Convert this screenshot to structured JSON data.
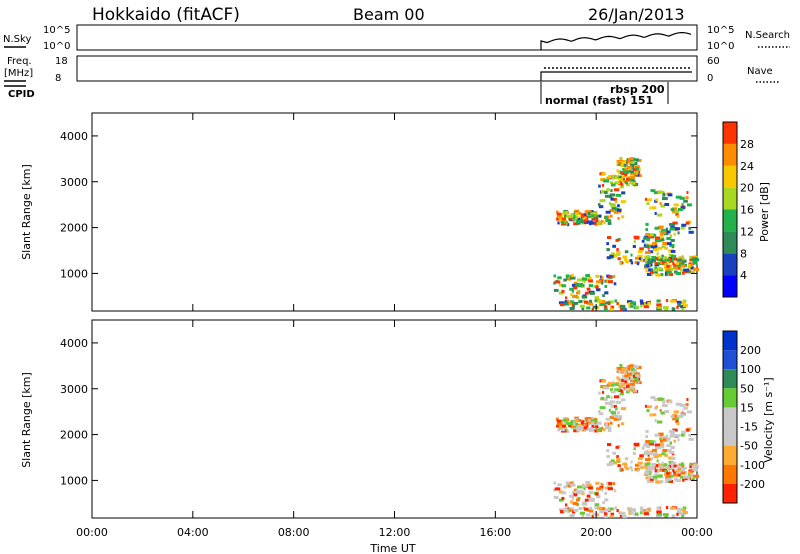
{
  "header": {
    "station": "Hokkaido (fitACF)",
    "beam": "Beam 00",
    "date": "26/Jan/2013"
  },
  "aux_panels": {
    "nsky_label": "N.Sky",
    "nsky_ticks": [
      "10^5",
      "10^0"
    ],
    "nsearch_label": "N.Search",
    "nsearch_ticks": [
      "10^5",
      "10^0"
    ],
    "freq_label_1": "Freq.",
    "freq_label_2": "[MHz]",
    "freq_ticks": [
      "18",
      "8"
    ],
    "nave_label": "Nave",
    "nave_ticks": [
      "60",
      "0"
    ],
    "cpid_label": "CPID",
    "cpid_entries": [
      "rbsp 200",
      "normal (fast) 151"
    ]
  },
  "colors": {
    "power_scale": [
      "#0000ff",
      "#1a3fbf",
      "#2e8b57",
      "#22b14c",
      "#a8d820",
      "#f7c800",
      "#ff8c00",
      "#ff3300",
      "#e60000"
    ],
    "velocity_scale": [
      "#0033cc",
      "#1f4fd6",
      "#2e8b57",
      "#66cc33",
      "#c8c8c8",
      "#c8c8c8",
      "#ffaa33",
      "#ff7700",
      "#ff2200",
      "#e60000"
    ]
  },
  "chart_data": [
    {
      "type": "heatmap",
      "panel": "power",
      "ylabel": "Slant Range [km]",
      "xlim": [
        "00:00",
        "00:00"
      ],
      "ylim": [
        180,
        4500
      ],
      "yticks": [
        1000,
        2000,
        3000,
        4000
      ],
      "colorbar_label": "Power [dB]",
      "colorbar_ticks": [
        4,
        8,
        12,
        16,
        20,
        24,
        28
      ],
      "colorbar_range": [
        0,
        32
      ]
    },
    {
      "type": "heatmap",
      "panel": "velocity",
      "ylabel": "Slant Range [km]",
      "xlabel": "Time UT",
      "xticks": [
        "00:00",
        "04:00",
        "08:00",
        "12:00",
        "16:00",
        "20:00",
        "00:00"
      ],
      "ylim": [
        180,
        4500
      ],
      "yticks": [
        1000,
        2000,
        3000,
        4000
      ],
      "colorbar_label": "Velocity [m s⁻¹]",
      "colorbar_ticks": [
        200,
        100,
        50,
        15,
        -15,
        -50,
        -100,
        -200
      ]
    }
  ]
}
